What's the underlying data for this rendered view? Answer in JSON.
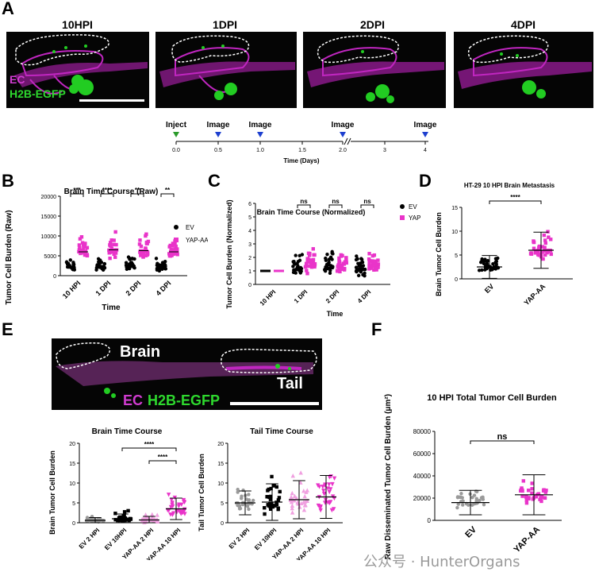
{
  "panels": {
    "A": {
      "letter": "A",
      "images": [
        {
          "label": "10HPI"
        },
        {
          "label": "1DPI"
        },
        {
          "label": "2DPI"
        },
        {
          "label": "4DPI"
        }
      ],
      "legend": {
        "ec": "EC",
        "h2b": "H2B-EGFP"
      },
      "timeline": {
        "inject": "Inject",
        "image": "Image",
        "ticks": [
          "0.0",
          "0.5",
          "1.0",
          "1.5",
          "2.0",
          "3",
          "4"
        ],
        "xlabel": "Time (Days)"
      }
    },
    "B": {
      "letter": "B"
    },
    "C": {
      "letter": "C"
    },
    "D": {
      "letter": "D"
    },
    "E": {
      "letter": "E",
      "image_labels": {
        "brain": "Brain",
        "tail": "Tail",
        "ec": "EC",
        "h2b": "H2B-EGFP"
      }
    },
    "F": {
      "letter": "F"
    }
  },
  "colors": {
    "ev": "#000000",
    "yap": "#e934c9",
    "ec": "#c026c0",
    "gfp": "#22cc22",
    "ev_light": "#9a9a9a",
    "yap_light": "#f0a0e0"
  },
  "watermark": "公众号 · HunterOrgans",
  "chart_data": [
    {
      "id": "B",
      "type": "scatter",
      "title": "Brain Time Course (Raw)",
      "xlabel": "Time",
      "ylabel": "Tumor Cell Burden (Raw)",
      "ylim": [
        0,
        20000
      ],
      "yticks": [
        "0",
        "5000",
        "10000",
        "15000",
        "20000"
      ],
      "categories": [
        "10 HPI",
        "1 DPI",
        "2 DPI",
        "4 DPI"
      ],
      "series": [
        {
          "name": "EV",
          "medians": [
            2200,
            2300,
            2500,
            2200
          ]
        },
        {
          "name": "YAP-AA",
          "medians": [
            6000,
            6500,
            6300,
            6000
          ]
        }
      ],
      "significance": [
        "***",
        "****",
        "**",
        "**"
      ]
    },
    {
      "id": "C",
      "type": "scatter",
      "title": "Brain Time Course (Normalized)",
      "xlabel": "Time",
      "ylabel": "Tumor Cell Burden (Normalized)",
      "ylim": [
        0,
        6
      ],
      "yticks": [
        "0",
        "1",
        "2",
        "3",
        "4",
        "5",
        "6"
      ],
      "categories": [
        "10 HPI",
        "1 DPI",
        "2 DPI",
        "4 DPI"
      ],
      "series": [
        {
          "name": "EV",
          "medians": [
            1.0,
            1.2,
            1.3,
            1.2
          ]
        },
        {
          "name": "YAP-AA",
          "medians": [
            1.0,
            1.5,
            1.4,
            1.4
          ]
        }
      ],
      "significance": [
        "",
        "ns",
        "ns",
        "ns"
      ]
    },
    {
      "id": "D",
      "type": "scatter",
      "title": "HT-29 10 HPI Brain Metastasis",
      "ylabel": "Brain Tumor Cell Burden",
      "ylim": [
        0,
        15
      ],
      "yticks": [
        "0",
        "5",
        "10",
        "15"
      ],
      "categories": [
        "EV",
        "YAP-AA"
      ],
      "means": [
        2.5,
        6.0
      ],
      "sd": [
        2.4,
        3.8
      ],
      "significance": "****"
    },
    {
      "id": "E1",
      "type": "scatter",
      "title": "Brain Time Course",
      "ylabel": "Brain Tumor Cell Burden",
      "ylim": [
        0,
        20
      ],
      "yticks": [
        "0",
        "5",
        "10",
        "15",
        "20"
      ],
      "categories": [
        "EV 2 HPI",
        "EV 10HPI",
        "YAP-AA 2 HPI",
        "YAP-AA 10 HPI"
      ],
      "means": [
        0.6,
        1.0,
        0.7,
        3.5
      ],
      "sd": [
        0.7,
        1.2,
        0.9,
        2.7
      ],
      "significance": [
        {
          "from": 1,
          "to": 3,
          "label": "****"
        },
        {
          "from": 2,
          "to": 3,
          "label": "****"
        }
      ]
    },
    {
      "id": "E2",
      "type": "scatter",
      "title": "Tail Time Course",
      "ylabel": "Tail Tumor Cell Burden",
      "ylim": [
        0,
        20
      ],
      "yticks": [
        "0",
        "5",
        "10",
        "15",
        "20"
      ],
      "categories": [
        "EV 2 HPI",
        "EV 10HPI",
        "YAP-AA 2 HPI",
        "YAP-AA 10 HPI"
      ],
      "means": [
        5.0,
        5.2,
        5.8,
        6.5
      ],
      "sd": [
        3.0,
        4.6,
        4.8,
        5.4
      ]
    },
    {
      "id": "F",
      "type": "scatter",
      "title": "10 HPI Total Tumor Cell Burden",
      "ylabel": "Raw Disseminated Tumor Cell Burden (μm²)",
      "ylim": [
        0,
        80000
      ],
      "yticks": [
        "0",
        "20000",
        "40000",
        "60000",
        "80000"
      ],
      "categories": [
        "EV",
        "YAP-AA"
      ],
      "means": [
        16000,
        23000
      ],
      "sd": [
        11000,
        18000
      ],
      "significance": "ns"
    }
  ]
}
